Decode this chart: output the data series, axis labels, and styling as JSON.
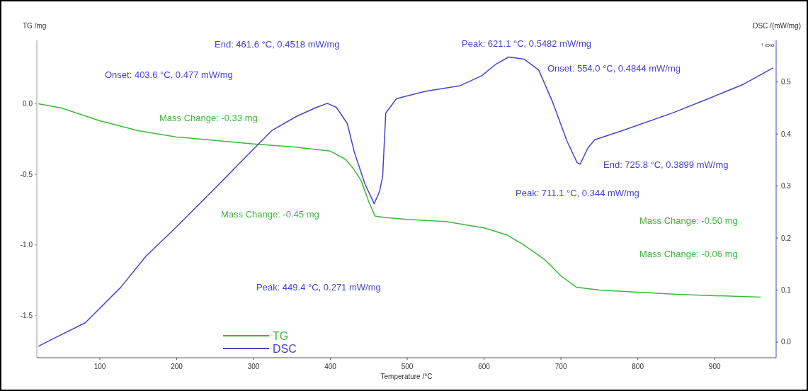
{
  "chart_data": {
    "type": "line",
    "xlabel": "Temperature /°C",
    "ylabel": "TG /mg",
    "y2label": "DSC /(mW/mg)",
    "xlim": [
      18,
      980
    ],
    "xticks": [
      100,
      200,
      300,
      400,
      500,
      600,
      700,
      800,
      900
    ],
    "ylim": [
      -1.8,
      0.45
    ],
    "yticks": [
      {
        "value": 0,
        "label": "0.0"
      },
      {
        "value": -0.5,
        "label": "-0.5"
      },
      {
        "value": -1,
        "label": "-1.0"
      },
      {
        "value": -1.5,
        "label": "-1.5"
      }
    ],
    "y2lim": [
      -0.03,
      0.58
    ],
    "y2ticks": [
      {
        "value": 0,
        "label": "0.0"
      },
      0.1,
      0.2,
      0.3,
      0.4,
      0.5
    ],
    "legend": "bottom left",
    "grid": false,
    "marker": "none",
    "line_style": "solid",
    "series": [
      {
        "name": "TG",
        "color": "#3cb83c",
        "x": [
          20,
          50,
          100,
          150,
          200,
          250,
          300,
          350,
          400,
          420,
          430,
          440,
          450,
          458,
          470,
          500,
          550,
          600,
          630,
          650,
          670,
          680,
          700,
          720,
          750,
          800,
          850,
          900,
          960
        ],
        "values": [
          0.0,
          -0.03,
          -0.12,
          -0.19,
          -0.235,
          -0.26,
          -0.285,
          -0.305,
          -0.335,
          -0.395,
          -0.46,
          -0.545,
          -0.695,
          -0.795,
          -0.805,
          -0.82,
          -0.835,
          -0.88,
          -0.93,
          -0.995,
          -1.07,
          -1.11,
          -1.22,
          -1.3,
          -1.32,
          -1.335,
          -1.35,
          -1.36,
          -1.37
        ]
      },
      {
        "name": "DSC",
        "color": "#4444cc",
        "axis": "y2",
        "x": [
          20,
          44,
          81,
          127,
          160,
          200,
          246,
          292,
          324,
          356,
          380,
          396,
          408,
          422,
          431,
          445,
          457,
          464,
          468,
          472,
          486,
          523,
          569,
          597,
          615,
          632,
          652,
          671,
          689,
          708,
          721,
          725,
          735,
          744,
          781,
          846,
          892,
          938,
          976
        ],
        "values": [
          -0.008,
          0.01,
          0.037,
          0.105,
          0.165,
          0.222,
          0.29,
          0.359,
          0.407,
          0.434,
          0.45,
          0.459,
          0.451,
          0.42,
          0.366,
          0.304,
          0.266,
          0.29,
          0.318,
          0.44,
          0.468,
          0.482,
          0.493,
          0.512,
          0.534,
          0.548,
          0.544,
          0.523,
          0.462,
          0.386,
          0.345,
          0.342,
          0.373,
          0.389,
          0.407,
          0.441,
          0.468,
          0.496,
          0.527
        ]
      }
    ],
    "annotations": [
      "Onset: 403.6 °C, 0.477 mW/mg",
      "End: 461.6 °C, 0.4518 mW/mg",
      "Peak: 621.1 °C, 0.5482 mW/mg",
      "Onset: 554.0 °C, 0.4844 mW/mg",
      "Mass Change: -0.33 mg",
      "Mass Change: -0.45 mg",
      "End: 725.8 °C, 0.3899 mW/mg",
      "Peak: 711.1 °C, 0.344 mW/mg",
      "Mass Change: -0.50 mg",
      "Mass Change: -0.06 mg",
      "Peak: 449.4 °C, 0.271 mW/mg",
      "↑ exo"
    ]
  }
}
